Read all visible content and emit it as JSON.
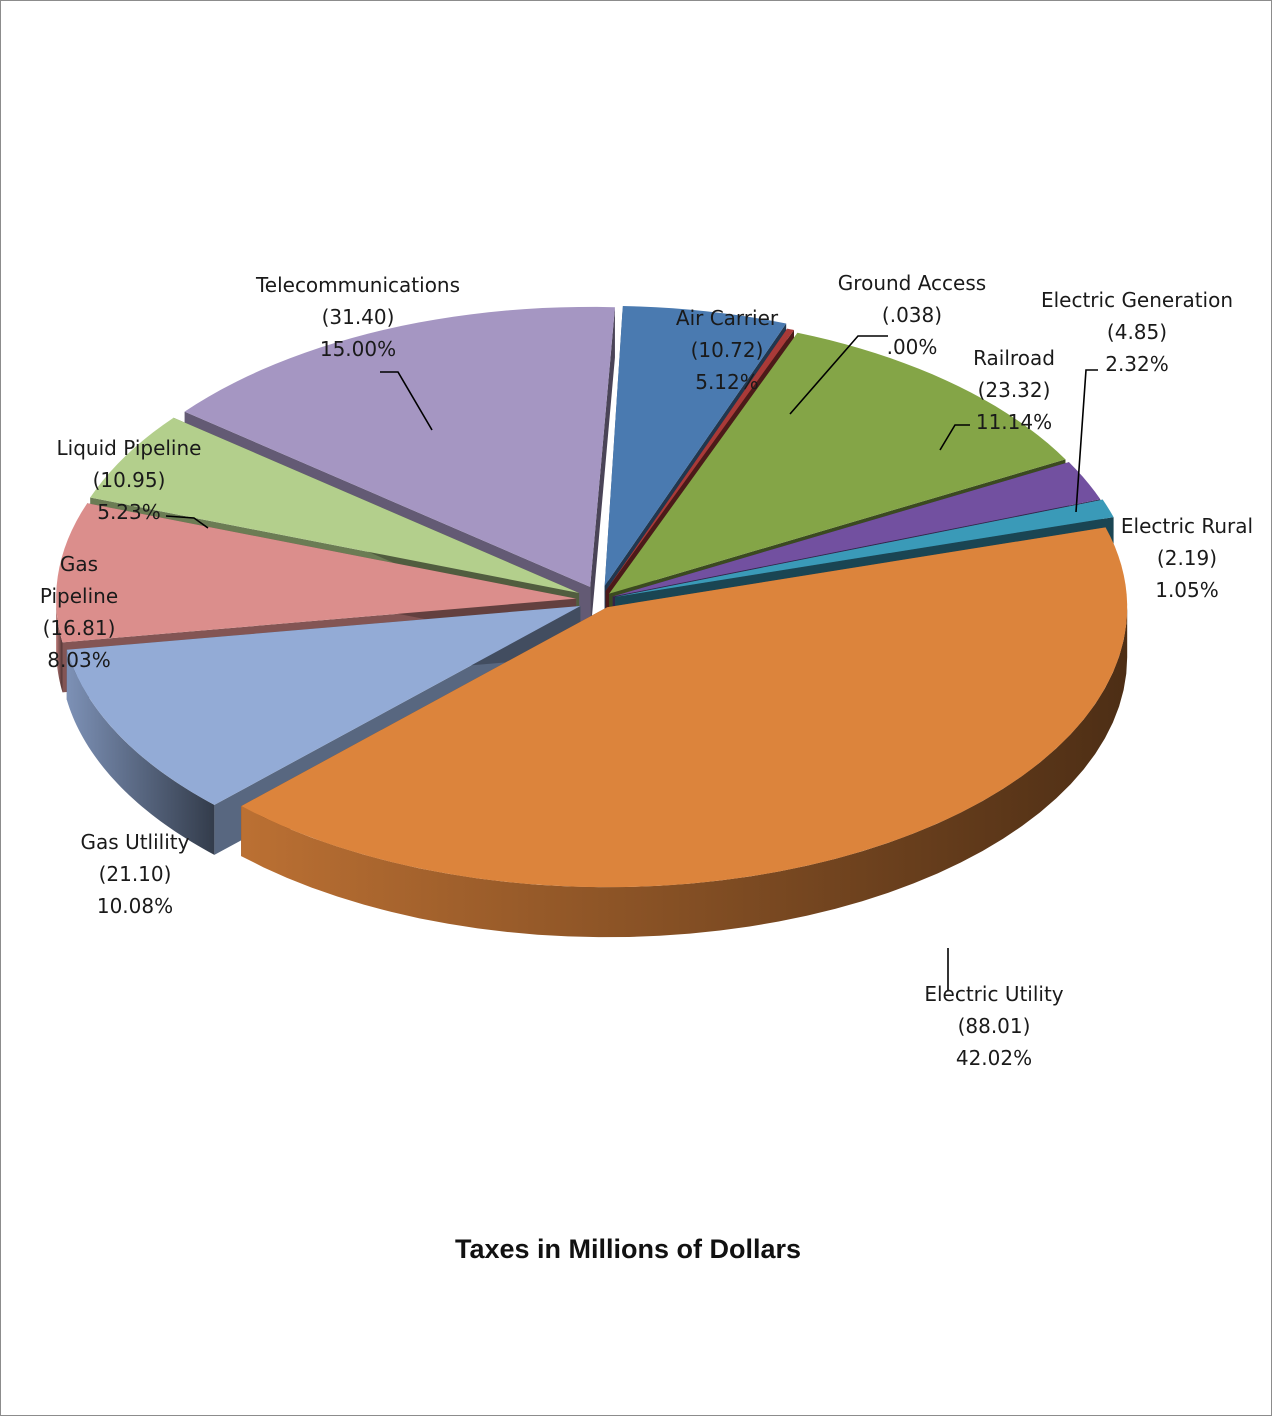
{
  "chart_data": {
    "type": "pie",
    "title": "Taxes in Millions of Dollars",
    "slices": [
      {
        "label": "Air Carrier",
        "value_text": "(10.72)",
        "percent_text": "5.12%",
        "value": 10.72,
        "percent": 5.12,
        "color": "#4a7ab0"
      },
      {
        "label": "Ground Access",
        "value_text": "(.038)",
        "percent_text": ".00%",
        "value": 0.038,
        "percent": 0.0,
        "color": "#a93a38"
      },
      {
        "label": "Railroad",
        "value_text": "(23.32)",
        "percent_text": "11.14%",
        "value": 23.32,
        "percent": 11.14,
        "color": "#84a547"
      },
      {
        "label": "Electric Generation",
        "value_text": "(4.85)",
        "percent_text": "2.32%",
        "value": 4.85,
        "percent": 2.32,
        "color": "#7250a0"
      },
      {
        "label": "Electric Rural",
        "value_text": "(2.19)",
        "percent_text": "1.05%",
        "value": 2.19,
        "percent": 1.05,
        "color": "#3a9ab8"
      },
      {
        "label": "Electric Utility",
        "value_text": "(88.01)",
        "percent_text": "42.02%",
        "value": 88.01,
        "percent": 42.02,
        "color": "#dc843c"
      },
      {
        "label": "Gas Utlility",
        "value_text": "(21.10)",
        "percent_text": "10.08%",
        "value": 21.1,
        "percent": 10.08,
        "color": "#93abd6"
      },
      {
        "label": "Gas Pipeline",
        "value_text": "(16.81)",
        "percent_text": "8.03%",
        "value": 16.81,
        "percent": 8.03,
        "color": "#db8e8c"
      },
      {
        "label": "Liquid Pipeline",
        "value_text": "(10.95)",
        "percent_text": "5.23%",
        "value": 10.95,
        "percent": 5.23,
        "color": "#b3cf8c"
      },
      {
        "label": "Telecommunications",
        "value_text": "(31.40)",
        "percent_text": "15.00%",
        "value": 31.4,
        "percent": 15.0,
        "color": "#a596c2"
      }
    ],
    "legend": "none"
  }
}
